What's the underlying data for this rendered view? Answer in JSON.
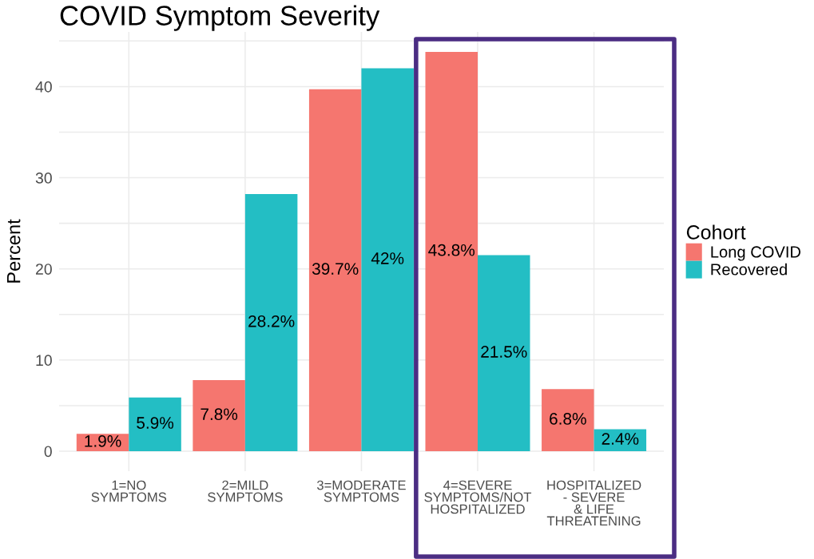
{
  "chart_data": {
    "type": "bar",
    "title": "COVID Symptom Severity",
    "ylabel": "Percent",
    "legend_title": "Cohort",
    "categories": [
      "1=NO\nSYMPTOMS",
      "2=MILD\nSYMPTOMS",
      "3=MODERATE\nSYMPTOMS",
      "4=SEVERE\nSYMPTOMS/NOT\nHOSPITALIZED",
      "HOSPITALIZED\n- SEVERE\n& LIFE\nTHREATENING"
    ],
    "series": [
      {
        "name": "Long COVID",
        "color": "#f5766f",
        "values": [
          1.9,
          7.8,
          39.7,
          43.8,
          6.8
        ],
        "value_labels": [
          "1.9%",
          "7.8%",
          "39.7%",
          "43.8%",
          "6.8%"
        ]
      },
      {
        "name": "Recovered",
        "color": "#23bec4",
        "values": [
          5.9,
          28.2,
          42,
          21.5,
          2.4
        ],
        "value_labels": [
          "5.9%",
          "28.2%",
          "42%",
          "21.5%",
          "2.4%"
        ]
      }
    ],
    "ylim": [
      -2.2,
      46
    ],
    "yticks": [
      0,
      {
        "value": 5,
        "label": null
      },
      10,
      {
        "value": 15,
        "label": null
      },
      20,
      {
        "value": 25,
        "label": null
      },
      30,
      {
        "value": 35,
        "label": null
      },
      40,
      {
        "value": 45,
        "label": null
      }
    ],
    "grid": true,
    "legend": "right"
  }
}
